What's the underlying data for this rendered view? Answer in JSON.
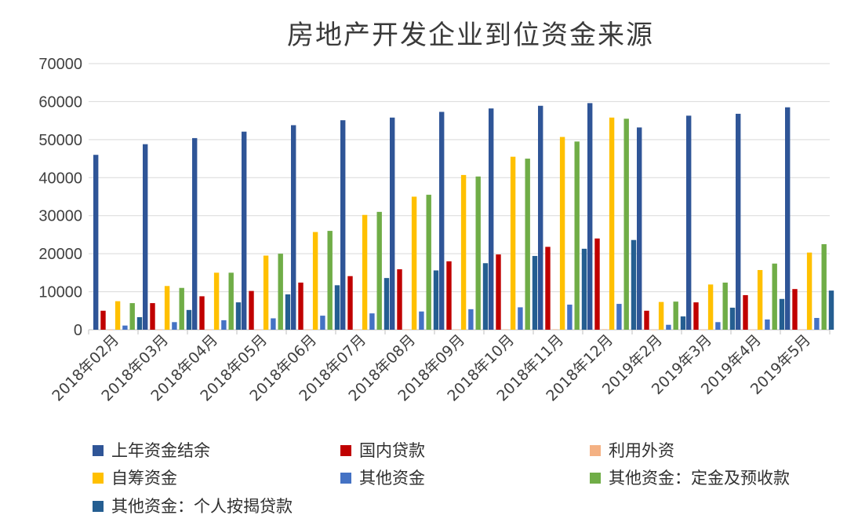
{
  "chart_data": {
    "type": "bar",
    "title": "房地产开发企业到位资金来源",
    "xlabel": "",
    "ylabel": "",
    "ylim": [
      0,
      70000
    ],
    "yticks": [
      0,
      10000,
      20000,
      30000,
      40000,
      50000,
      60000,
      70000
    ],
    "grid": true,
    "legend_position": "bottom",
    "categories": [
      "2018年02月",
      "2018年03月",
      "2018年04月",
      "2018年05月",
      "2018年06月",
      "2018年07月",
      "2018年08月",
      "2018年09月",
      "2018年10月",
      "2018年11月",
      "2018年12月",
      "2019年2月",
      "2019年3月",
      "2019年4月",
      "2019年5月"
    ],
    "series": [
      {
        "name": "上年资金结余",
        "color": "#2f5597",
        "values": [
          46000,
          48800,
          50400,
          52100,
          53800,
          55100,
          55800,
          57300,
          58200,
          58900,
          59600,
          53200,
          56300,
          56800,
          58500
        ]
      },
      {
        "name": "国内贷款",
        "color": "#c00000",
        "values": [
          5000,
          7000,
          8800,
          10200,
          12400,
          14100,
          15900,
          18000,
          19800,
          21800,
          24000,
          5000,
          7200,
          9100,
          10700
        ]
      },
      {
        "name": "利用外资",
        "color": "#f4b183",
        "values": [
          30,
          40,
          50,
          60,
          70,
          80,
          90,
          100,
          110,
          120,
          130,
          30,
          40,
          50,
          60
        ]
      },
      {
        "name": "自筹资金",
        "color": "#ffc000",
        "values": [
          7500,
          11500,
          15000,
          19500,
          25700,
          30200,
          35000,
          40700,
          45500,
          50700,
          55800,
          7300,
          11900,
          15700,
          20300
        ]
      },
      {
        "name": "其他资金",
        "color": "#4472c4",
        "values": [
          1100,
          2000,
          2500,
          3000,
          3700,
          4300,
          4800,
          5400,
          5900,
          6600,
          6800,
          1300,
          2000,
          2700,
          3100
        ]
      },
      {
        "name": "其他资金：定金及预收款",
        "color": "#70ad47",
        "values": [
          7000,
          11000,
          15000,
          20000,
          26000,
          31000,
          35500,
          40300,
          45000,
          49500,
          55500,
          7400,
          12400,
          17400,
          22500
        ]
      },
      {
        "name": "其他资金：个人按揭贷款",
        "color": "#255e91",
        "values": [
          3300,
          5200,
          7200,
          9300,
          11700,
          13600,
          15600,
          17500,
          19400,
          21300,
          23600,
          3500,
          5800,
          8100,
          10300
        ]
      }
    ]
  }
}
